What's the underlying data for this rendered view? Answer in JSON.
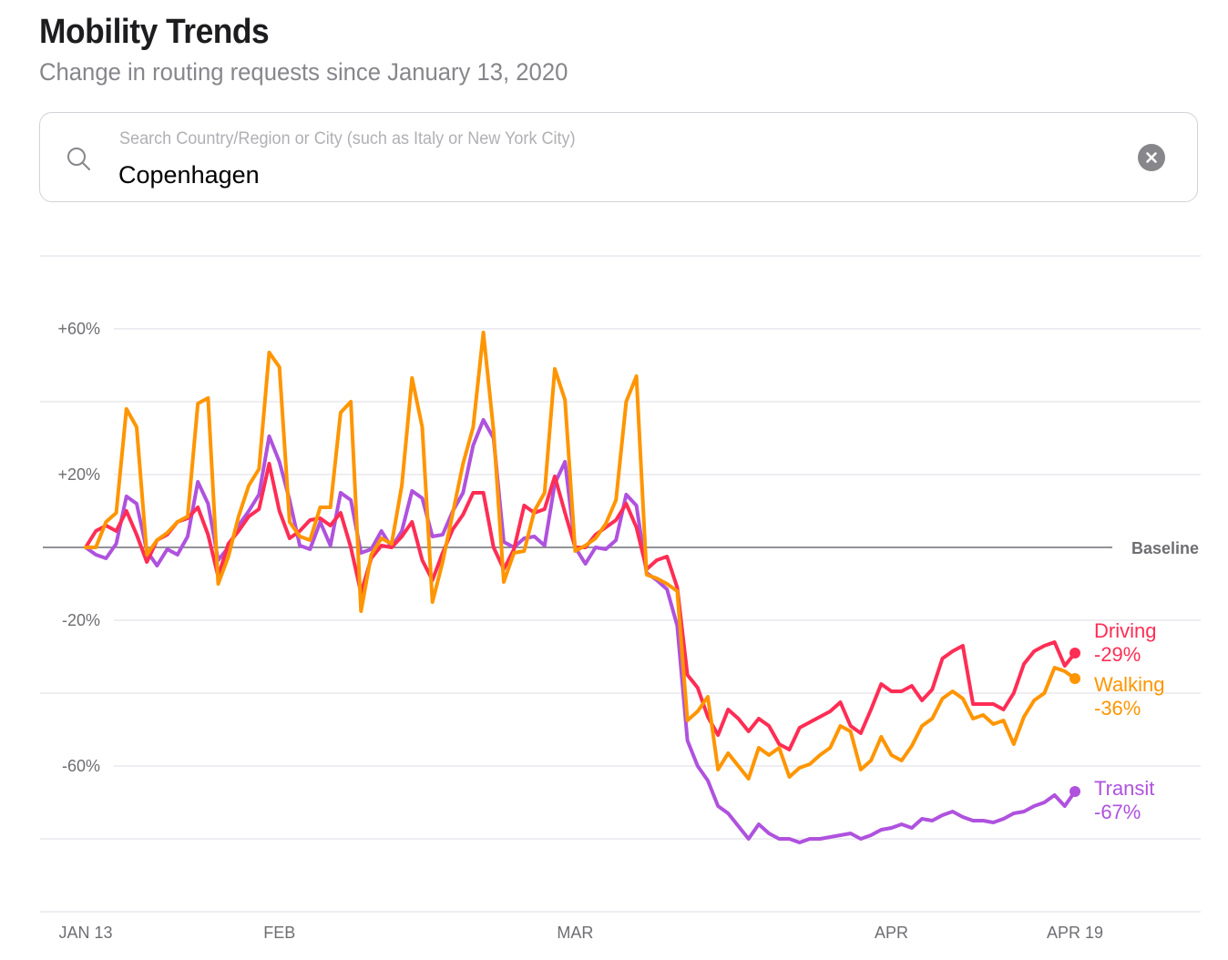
{
  "header": {
    "title": "Mobility Trends",
    "subtitle": "Change in routing requests since January 13, 2020"
  },
  "search": {
    "placeholder": "Search Country/Region or City (such as Italy or New York City)",
    "value": "Copenhagen",
    "search_icon": "search-icon",
    "clear_icon": "clear-circle-icon"
  },
  "chart_data": {
    "type": "line",
    "title": "Mobility Trends",
    "subtitle": "Change in routing requests since January 13, 2020",
    "xlabel": "",
    "ylabel": "",
    "x_start": "2020-01-13",
    "x_end": "2020-04-19",
    "x_unit": "day",
    "x_ticks": [
      {
        "day": 0,
        "label": "JAN 13"
      },
      {
        "day": 19,
        "label": "FEB"
      },
      {
        "day": 48,
        "label": "MAR"
      },
      {
        "day": 79,
        "label": "APR"
      },
      {
        "day": 97,
        "label": "APR 19"
      }
    ],
    "ylim": [
      -100,
      80
    ],
    "y_gridlines": [
      80,
      60,
      40,
      20,
      -20,
      -40,
      -60,
      -80,
      -100
    ],
    "y_ticks": [
      {
        "value": 60,
        "label": "+60%"
      },
      {
        "value": 20,
        "label": "+20%"
      },
      {
        "value": -20,
        "label": "-20%"
      },
      {
        "value": -60,
        "label": "-60%"
      }
    ],
    "baseline": {
      "value": 0,
      "label": "Baseline"
    },
    "grid": true,
    "legend_placement": "right-end-of-lines",
    "series": [
      {
        "name": "Driving",
        "final_label": "-29%",
        "color": "#FF2D55",
        "values": [
          0,
          4.5,
          6,
          4.5,
          10,
          3.5,
          -4,
          2,
          3.5,
          7,
          8,
          11,
          3.5,
          -8,
          1,
          4.5,
          8.5,
          10.5,
          23,
          10,
          2.5,
          4.5,
          7.5,
          8,
          6,
          9.5,
          0,
          -12.5,
          -3,
          0.5,
          0,
          3,
          7,
          -3.5,
          -9,
          -1.5,
          5,
          9,
          15,
          15,
          0,
          -6,
          -0.5,
          11.5,
          9.5,
          10.5,
          19.5,
          9.5,
          0,
          0,
          3.5,
          5.5,
          7.5,
          12,
          5.5,
          -6,
          -3.5,
          -2.5,
          -11,
          -35,
          -38.5,
          -46.5,
          -51.5,
          -44.5,
          -47,
          -50.5,
          -47,
          -49,
          -54,
          -55.5,
          -49.5,
          -48,
          -46.5,
          -45,
          -42.5,
          -49,
          -51,
          -44.5,
          -37.5,
          -39.5,
          -39.5,
          -38,
          -42,
          -39,
          -30.5,
          -28.5,
          -27,
          -43,
          -43,
          -43,
          -44.5,
          -40,
          -32,
          -28.5,
          -27,
          -26,
          -32.5,
          -29
        ]
      },
      {
        "name": "Walking",
        "final_label": "-36%",
        "color": "#FF9500",
        "values": [
          0,
          0,
          7,
          9.5,
          38,
          33,
          -2,
          2,
          4,
          7,
          8.5,
          39.5,
          41,
          -10,
          -2.5,
          8.5,
          17,
          21.5,
          53.5,
          49.5,
          7,
          3,
          2,
          11,
          11,
          37,
          40,
          -17.5,
          -2,
          2.5,
          1,
          17,
          46.5,
          33,
          -15,
          -4,
          9.5,
          23,
          33,
          59,
          32,
          -9.5,
          -1.5,
          -1,
          10,
          15,
          49,
          40.5,
          -1,
          0.5,
          2.5,
          6.5,
          13,
          40,
          47,
          -7.5,
          -8.5,
          -10,
          -12,
          -47.5,
          -45,
          -41,
          -61,
          -56.5,
          -60,
          -63.5,
          -55,
          -57,
          -55,
          -63,
          -60.5,
          -59.5,
          -57,
          -55,
          -49,
          -50.5,
          -61,
          -58.5,
          -52,
          -57,
          -58.5,
          -54.5,
          -49,
          -47,
          -41.5,
          -39.5,
          -41.5,
          -47,
          -46,
          -48.5,
          -47.5,
          -54,
          -46.5,
          -42,
          -40,
          -33,
          -34,
          -36
        ]
      },
      {
        "name": "Transit",
        "final_label": "-67%",
        "color": "#AF52DE",
        "values": [
          0,
          -2,
          -3,
          1,
          14,
          12,
          -1,
          -5,
          -0.5,
          -2,
          3,
          18,
          12,
          -3.5,
          0,
          6,
          10,
          14.5,
          30.5,
          23.5,
          13,
          0.5,
          -0.5,
          7,
          0.5,
          15,
          13,
          -1.5,
          -0.5,
          4.5,
          0,
          4.5,
          15.5,
          13.5,
          3,
          3.5,
          10,
          15,
          28,
          35,
          30,
          1.5,
          0,
          2.5,
          3,
          0.5,
          17.5,
          23.5,
          0,
          -4.5,
          0,
          -0.5,
          2,
          14.5,
          11.5,
          -7,
          -9,
          -11.5,
          -21.5,
          -53,
          -60,
          -64,
          -71,
          -73,
          -76.5,
          -80,
          -76,
          -78.5,
          -80,
          -80,
          -81,
          -80,
          -80,
          -79.5,
          -79,
          -78.5,
          -80,
          -79,
          -77.5,
          -77,
          -76,
          -77,
          -74.5,
          -75,
          -73.5,
          -72.5,
          -74,
          -75,
          -75,
          -75.5,
          -74.5,
          -73,
          -72.5,
          -71,
          -70,
          -68,
          -71,
          -67
        ]
      }
    ]
  }
}
